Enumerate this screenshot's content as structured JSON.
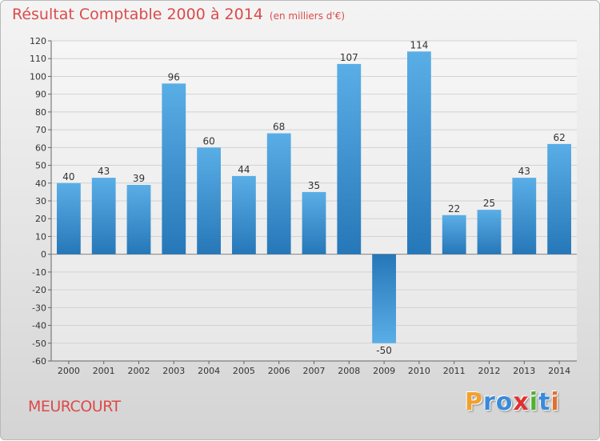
{
  "chart_data": {
    "type": "bar",
    "title": "Résultat Comptable 2000 à 2014",
    "subtitle": "(en milliers d'€)",
    "categories": [
      "2000",
      "2001",
      "2002",
      "2003",
      "2004",
      "2005",
      "2006",
      "2007",
      "2008",
      "2009",
      "2010",
      "2011",
      "2012",
      "2013",
      "2014"
    ],
    "values": [
      40,
      43,
      39,
      96,
      60,
      44,
      68,
      35,
      107,
      -50,
      114,
      22,
      25,
      43,
      62
    ],
    "ylim": [
      -60,
      120
    ],
    "yticks": [
      -60,
      -50,
      -40,
      -30,
      -20,
      -10,
      0,
      10,
      20,
      30,
      40,
      50,
      60,
      70,
      80,
      90,
      100,
      110,
      120
    ],
    "xlabel": "",
    "ylabel": "",
    "grid": true,
    "colors": {
      "bar_light": "#5aaee6",
      "bar_dark": "#2677b8"
    }
  },
  "footer": {
    "commune": "MEURCOURT"
  },
  "logo": {
    "letters": [
      "P",
      "r",
      "o",
      "x",
      "i",
      "t",
      "i"
    ],
    "colors": [
      "#f0a030",
      "#3a8ad8",
      "#3a8ad8",
      "#e03030",
      "#50b030",
      "#3a8ad8",
      "#e07030"
    ]
  }
}
